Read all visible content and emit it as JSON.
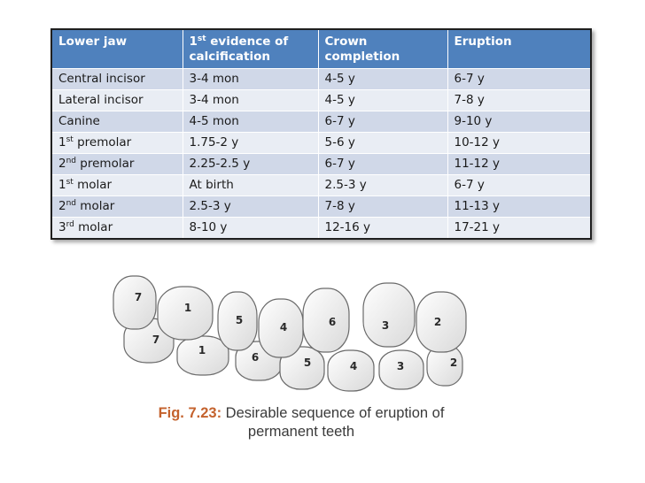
{
  "table": {
    "headers": [
      {
        "text": "Lower jaw",
        "sup": "",
        "rest": ""
      },
      {
        "text": "1",
        "sup": "st",
        "rest": " evidence of calcification"
      },
      {
        "text": "Crown completion",
        "sup": "",
        "rest": ""
      },
      {
        "text": "Eruption",
        "sup": "",
        "rest": ""
      }
    ],
    "rows": [
      {
        "tooth": "Central incisor",
        "tooth_sup": "",
        "tooth_rest": "",
        "calcification": "3-4 mon",
        "crown": "4-5 y",
        "eruption": "6-7 y"
      },
      {
        "tooth": "Lateral incisor",
        "tooth_sup": "",
        "tooth_rest": "",
        "calcification": "3-4 mon",
        "crown": "4-5 y",
        "eruption": "7-8 y"
      },
      {
        "tooth": "Canine",
        "tooth_sup": "",
        "tooth_rest": "",
        "calcification": "4-5 mon",
        "crown": "6-7 y",
        "eruption": "9-10 y"
      },
      {
        "tooth": "1",
        "tooth_sup": "st",
        "tooth_rest": " premolar",
        "calcification": "1.75-2 y",
        "crown": "5-6 y",
        "eruption": "10-12 y"
      },
      {
        "tooth": "2",
        "tooth_sup": "nd",
        "tooth_rest": " premolar",
        "calcification": "2.25-2.5 y",
        "crown": "6-7 y",
        "eruption": "11-12 y"
      },
      {
        "tooth": "1",
        "tooth_sup": "st",
        "tooth_rest": " molar",
        "calcification": "At birth",
        "crown": "2.5-3 y",
        "eruption": "6-7 y"
      },
      {
        "tooth": "2",
        "tooth_sup": "nd",
        "tooth_rest": " molar",
        "calcification": "2.5-3 y",
        "crown": "7-8 y",
        "eruption": "11-13 y"
      },
      {
        "tooth": "3",
        "tooth_sup": "rd",
        "tooth_rest": " molar",
        "calcification": "8-10 y",
        "crown": "12-16 y",
        "eruption": "17-21 y"
      }
    ]
  },
  "figure": {
    "upper_teeth_numbers": [
      "7",
      "1",
      "5",
      "4",
      "6",
      "3",
      "2"
    ],
    "lower_teeth_numbers": [
      "7",
      "1",
      "6",
      "5",
      "4",
      "3",
      "2"
    ],
    "caption_label": "Fig. 7.23:",
    "caption_text": " Desirable sequence of eruption of permanent teeth"
  }
}
